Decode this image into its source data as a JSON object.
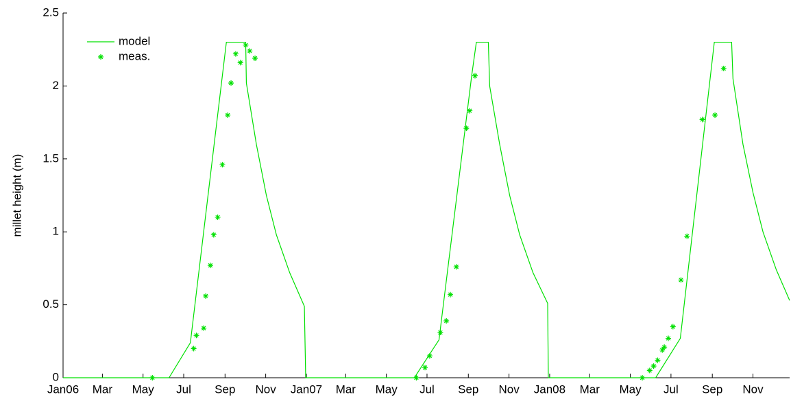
{
  "chart_data": {
    "type": "line-scatter",
    "y_label": "millet height (m)",
    "xlim": [
      0,
      1090
    ],
    "ylim": [
      0,
      2.5
    ],
    "xticks": [
      {
        "value": 0,
        "label": "Jan06"
      },
      {
        "value": 59,
        "label": "Mar"
      },
      {
        "value": 120,
        "label": "May"
      },
      {
        "value": 181,
        "label": "Jul"
      },
      {
        "value": 243,
        "label": "Sep"
      },
      {
        "value": 304,
        "label": "Nov"
      },
      {
        "value": 365,
        "label": "Jan07"
      },
      {
        "value": 424,
        "label": "Mar"
      },
      {
        "value": 485,
        "label": "May"
      },
      {
        "value": 546,
        "label": "Jul"
      },
      {
        "value": 608,
        "label": "Sep"
      },
      {
        "value": 669,
        "label": "Nov"
      },
      {
        "value": 730,
        "label": "Jan08"
      },
      {
        "value": 790,
        "label": "Mar"
      },
      {
        "value": 851,
        "label": "May"
      },
      {
        "value": 912,
        "label": "Jul"
      },
      {
        "value": 974,
        "label": "Sep"
      },
      {
        "value": 1035,
        "label": "Nov"
      }
    ],
    "yticks": [
      0,
      0.5,
      1,
      1.5,
      2,
      2.5
    ],
    "legend": "upper-left",
    "series": [
      {
        "name": "model",
        "kind": "line",
        "color": "#00e000",
        "x": [
          0,
          159,
          191,
          245,
          274,
          275,
          290,
          305,
          320,
          340,
          362,
          364,
          527,
          564,
          613,
          620,
          638,
          640,
          655,
          670,
          685,
          705,
          727,
          728,
          889,
          926,
          977,
          1003,
          1005,
          1020,
          1035,
          1050,
          1070,
          1090
        ],
        "values": [
          0,
          0,
          0.24,
          2.3,
          2.3,
          2.02,
          1.6,
          1.25,
          0.98,
          0.72,
          0.49,
          0,
          0,
          0.26,
          2.07,
          2.3,
          2.3,
          2.0,
          1.6,
          1.25,
          0.98,
          0.72,
          0.51,
          0,
          0,
          0.27,
          2.3,
          2.3,
          2.05,
          1.6,
          1.27,
          1.0,
          0.74,
          0.53
        ]
      },
      {
        "name": "meas.",
        "kind": "scatter",
        "color": "#00e000",
        "x": [
          134,
          196,
          200,
          211,
          214,
          221,
          226,
          232,
          239,
          247,
          252,
          259,
          266,
          274,
          280,
          288,
          530,
          543,
          550,
          566,
          575,
          581,
          590,
          605,
          610,
          618,
          869,
          880,
          886,
          892,
          899,
          902,
          908,
          915,
          927,
          936,
          959,
          978,
          991
        ],
        "values": [
          0,
          0.2,
          0.29,
          0.34,
          0.56,
          0.77,
          0.98,
          1.1,
          1.46,
          1.8,
          2.02,
          2.22,
          2.16,
          2.28,
          2.24,
          2.19,
          0,
          0.07,
          0.15,
          0.31,
          0.39,
          0.57,
          0.76,
          1.71,
          1.83,
          2.07,
          0,
          0.05,
          0.08,
          0.12,
          0.19,
          0.21,
          0.27,
          0.35,
          0.67,
          0.97,
          1.77,
          1.8,
          2.12
        ]
      }
    ]
  }
}
